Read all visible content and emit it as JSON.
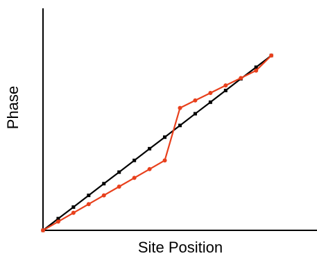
{
  "chart_data": {
    "type": "line",
    "title": "",
    "xlabel": "Site Position",
    "ylabel": "Phase",
    "xlim": [
      0,
      17.5
    ],
    "ylim": [
      0,
      12.7
    ],
    "grid": false,
    "legend": "none",
    "series": [
      {
        "color": "#000000",
        "marker": "square",
        "x": [
          0,
          1,
          2,
          3,
          4,
          5,
          6,
          7,
          8,
          9,
          10,
          11,
          12,
          13,
          14,
          15
        ],
        "y": [
          0,
          0.67,
          1.33,
          2.0,
          2.67,
          3.33,
          4.0,
          4.67,
          5.33,
          6.0,
          6.67,
          7.33,
          8.0,
          8.67,
          9.33,
          10.0
        ]
      },
      {
        "color": "#e8401c",
        "marker": "circle",
        "x": [
          0,
          1,
          2,
          3,
          4,
          5,
          6,
          7,
          8,
          9,
          10,
          11,
          12,
          13,
          14,
          15
        ],
        "y": [
          0,
          0.5,
          1.0,
          1.5,
          2.0,
          2.5,
          3.0,
          3.5,
          4.0,
          7.0,
          7.43,
          7.86,
          8.29,
          8.71,
          9.14,
          10.0
        ]
      }
    ]
  }
}
